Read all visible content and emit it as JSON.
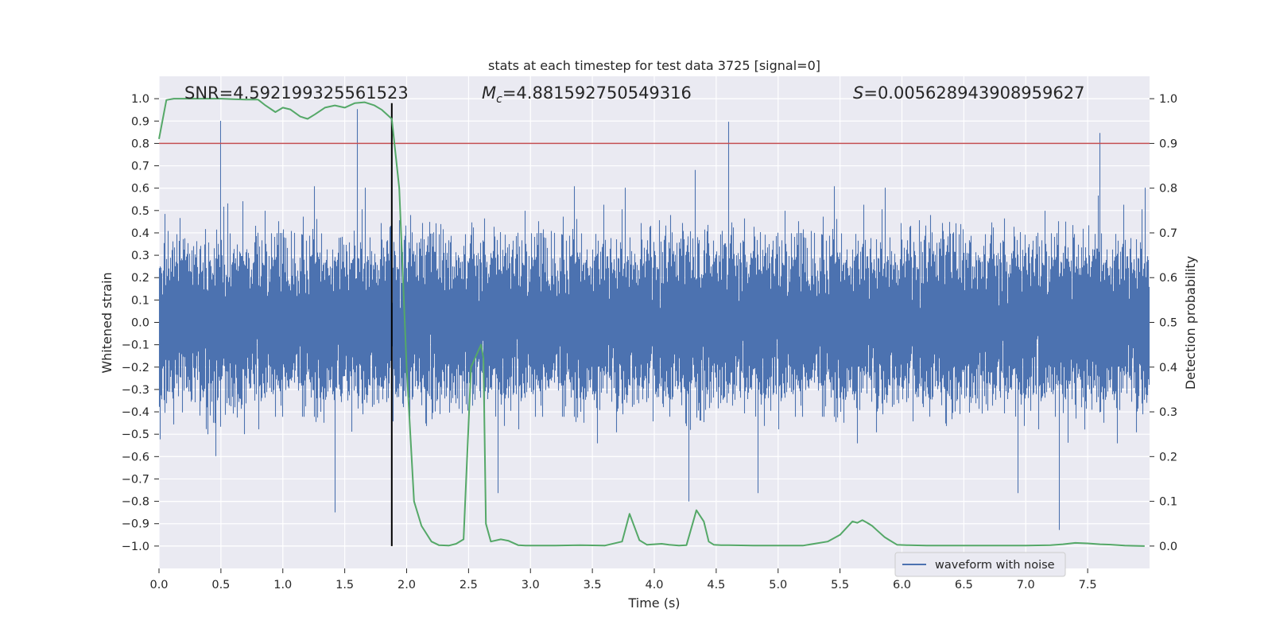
{
  "chart_data": {
    "type": "line",
    "title": "stats at each timestep for test data 3725 [signal=0]",
    "xlabel": "Time (s)",
    "ylabel_left": "Whitened strain",
    "ylabel_right": "Detection probability",
    "xlim": [
      0.0,
      8.0
    ],
    "ylim_left": [
      -1.1,
      1.1
    ],
    "ylim_right": [
      -0.05,
      1.05
    ],
    "x_ticks": [
      "0.0",
      "0.5",
      "1.0",
      "1.5",
      "2.0",
      "2.5",
      "3.0",
      "3.5",
      "4.0",
      "4.5",
      "5.0",
      "5.5",
      "6.0",
      "6.5",
      "7.0",
      "7.5"
    ],
    "y_left_ticks": [
      "1.0",
      "0.9",
      "0.8",
      "0.7",
      "0.6",
      "0.5",
      "0.4",
      "0.3",
      "0.2",
      "0.1",
      "0.0",
      "−0.1",
      "−0.2",
      "−0.3",
      "−0.4",
      "−0.5",
      "−0.6",
      "−0.7",
      "−0.8",
      "−0.9",
      "−1.0"
    ],
    "y_right_ticks": [
      "1.0",
      "0.9",
      "0.8",
      "0.7",
      "0.6",
      "0.5",
      "0.4",
      "0.3",
      "0.2",
      "0.1",
      "0.0"
    ],
    "grid": true,
    "legend_placement": "lower-right",
    "annotations": {
      "snr": "SNR=4.592199325561523",
      "mc_symbol": "M",
      "mc_sub": "c",
      "mc_value": "=4.881592750549316",
      "s_symbol": "S",
      "s_value": "=0.005628943908959627"
    },
    "series": [
      {
        "name": "waveform with noise",
        "axis": "left",
        "color": "#4c72b0",
        "sample_rate_hz": 2048,
        "typical_amplitude": 0.35,
        "peak_amplitude": 0.97,
        "notable_peaks_x": [
          0.5,
          1.6,
          4.6,
          7.6
        ],
        "notable_troughs_x": [
          1.42,
          4.28,
          7.27
        ]
      },
      {
        "axis": "right",
        "color": "#55a868",
        "x": [
          0.0,
          0.06,
          0.12,
          0.2,
          0.3,
          0.4,
          0.5,
          0.6,
          0.7,
          0.8,
          0.86,
          0.94,
          1.0,
          1.06,
          1.14,
          1.2,
          1.26,
          1.34,
          1.42,
          1.5,
          1.58,
          1.66,
          1.74,
          1.8,
          1.88,
          1.94,
          2.0,
          2.06,
          2.12,
          2.2,
          2.26,
          2.34,
          2.4,
          2.46,
          2.52,
          2.6,
          2.62,
          2.64,
          2.68,
          2.76,
          2.82,
          2.9,
          2.96,
          3.04,
          3.2,
          3.4,
          3.6,
          3.74,
          3.8,
          3.88,
          3.94,
          4.0,
          4.06,
          4.12,
          4.2,
          4.26,
          4.34,
          4.4,
          4.44,
          4.48,
          4.54,
          4.6,
          4.8,
          5.0,
          5.2,
          5.4,
          5.5,
          5.6,
          5.64,
          5.68,
          5.72,
          5.76,
          5.8,
          5.86,
          5.9,
          5.96,
          6.04,
          6.2,
          6.4,
          6.6,
          6.8,
          7.0,
          7.2,
          7.3,
          7.4,
          7.5,
          7.6,
          7.7,
          7.8,
          7.96
        ],
        "y": [
          0.91,
          0.997,
          1.0,
          1.0,
          1.0,
          1.0,
          1.0,
          0.999,
          0.998,
          0.998,
          0.985,
          0.97,
          0.98,
          0.976,
          0.96,
          0.955,
          0.965,
          0.98,
          0.985,
          0.98,
          0.99,
          0.992,
          0.985,
          0.975,
          0.955,
          0.8,
          0.4,
          0.1,
          0.045,
          0.01,
          0.002,
          0.001,
          0.005,
          0.015,
          0.4,
          0.45,
          0.42,
          0.05,
          0.01,
          0.015,
          0.012,
          0.002,
          0.001,
          0.001,
          0.001,
          0.002,
          0.001,
          0.01,
          0.072,
          0.013,
          0.003,
          0.004,
          0.005,
          0.003,
          0.001,
          0.002,
          0.08,
          0.055,
          0.01,
          0.003,
          0.002,
          0.002,
          0.001,
          0.001,
          0.001,
          0.01,
          0.025,
          0.055,
          0.052,
          0.058,
          0.052,
          0.045,
          0.035,
          0.02,
          0.013,
          0.003,
          0.002,
          0.001,
          0.001,
          0.001,
          0.001,
          0.001,
          0.002,
          0.004,
          0.007,
          0.006,
          0.004,
          0.003,
          0.001,
          0.0
        ]
      }
    ],
    "reference_lines": [
      {
        "orientation": "horizontal",
        "axis": "right",
        "value": 0.9,
        "color": "#c44e52"
      },
      {
        "orientation": "vertical",
        "x": 1.88,
        "y_range": [
          -1.0,
          0.98
        ],
        "color": "#000000"
      }
    ]
  }
}
